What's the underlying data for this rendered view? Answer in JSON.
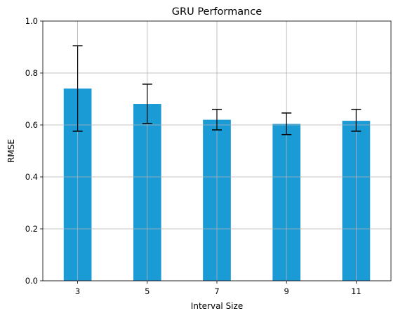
{
  "chart_data": {
    "type": "bar",
    "title": "GRU Performance",
    "xlabel": "Interval Size",
    "ylabel": "RMSE",
    "categories": [
      "3",
      "5",
      "7",
      "9",
      "11"
    ],
    "values": [
      0.74,
      0.681,
      0.62,
      0.604,
      0.616
    ],
    "error_lower": [
      0.576,
      0.606,
      0.581,
      0.563,
      0.576
    ],
    "error_upper": [
      0.905,
      0.757,
      0.66,
      0.646,
      0.66
    ],
    "ylim": [
      0,
      1.0
    ],
    "yticks": [
      "0.0",
      "0.2",
      "0.4",
      "0.6",
      "0.8",
      "1.0"
    ],
    "ytick_values": [
      0,
      0.2,
      0.4,
      0.6,
      0.8,
      1.0
    ],
    "grid": true,
    "colors": {
      "bar": "#1a9bd6"
    }
  }
}
